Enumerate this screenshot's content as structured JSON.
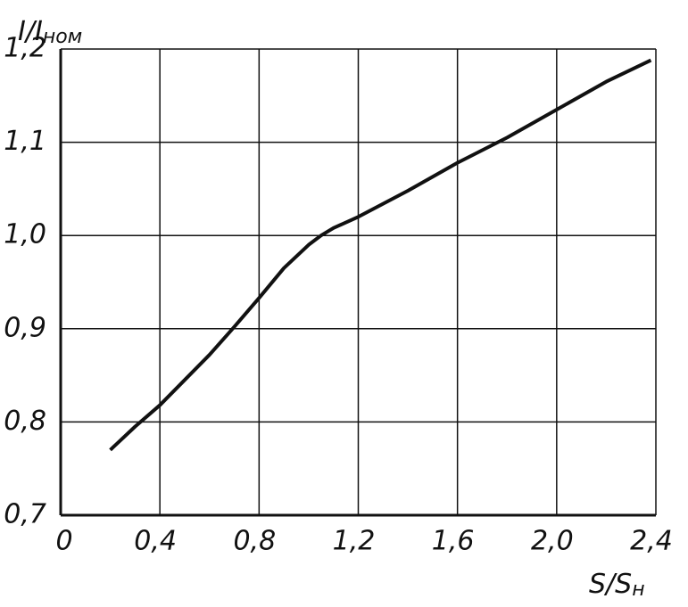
{
  "chart_data": {
    "type": "line",
    "ylabel": "I/I",
    "ylabel_sub": "ном",
    "xlabel": "S/S",
    "xlabel_sub": "н",
    "x": [
      0.2,
      0.3,
      0.4,
      0.5,
      0.6,
      0.7,
      0.8,
      0.9,
      1.0,
      1.05,
      1.1,
      1.2,
      1.4,
      1.6,
      1.8,
      2.0,
      2.2,
      2.38
    ],
    "series": [
      {
        "name": "I/Iном",
        "color": "#111111",
        "values": [
          0.77,
          0.795,
          0.818,
          0.845,
          0.872,
          0.902,
          0.933,
          0.965,
          0.99,
          1.0,
          1.008,
          1.02,
          1.048,
          1.078,
          1.105,
          1.135,
          1.165,
          1.188
        ]
      }
    ],
    "xlim": [
      0,
      2.4
    ],
    "xticks": [
      0,
      {
        "value": 0.4,
        "label": "0,4"
      },
      {
        "value": 0.8,
        "label": "0,8"
      },
      {
        "value": 1.2,
        "label": "1,2"
      },
      {
        "value": 1.6,
        "label": "1,6"
      },
      {
        "value": 2.0,
        "label": "2,0"
      },
      {
        "value": 2.4,
        "label": "2,4"
      }
    ],
    "ylim": [
      0.7,
      1.2
    ],
    "yticks": [
      {
        "value": 0.7,
        "label": "0,7"
      },
      {
        "value": 0.8,
        "label": "0,8"
      },
      {
        "value": 0.9,
        "label": "0,9"
      },
      {
        "value": 1.0,
        "label": "1,0"
      },
      {
        "value": 1.1,
        "label": "1,1"
      },
      {
        "value": 1.2,
        "label": "1,2"
      }
    ],
    "grid": true
  }
}
